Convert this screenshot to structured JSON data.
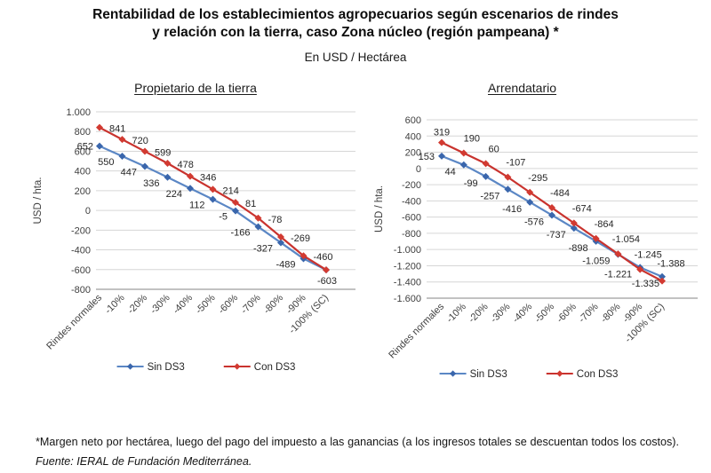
{
  "page": {
    "title_line1": "Rentabilidad de los establecimientos agropecuarios según escenarios de rindes",
    "title_line2": "y relación con la tierra, caso Zona núcleo (región pampeana) *",
    "subtitle": "En USD / Hectárea",
    "footnote_text": "*Margen neto por hectárea, luego del pago del impuesto a las ganancias (a los ingresos totales se descuentan todos los costos). ",
    "footnote_source": "Fuente: IERAL de Fundación Mediterránea."
  },
  "colors": {
    "sin_ds3_line": "#5B87C5",
    "sin_ds3_marker": "#3A66AC",
    "con_ds3_line": "#C9332E",
    "con_ds3_marker": "#D23A31",
    "gridline": "#D6D6D6",
    "axis_line": "#9E9E9E",
    "tick_text": "#404040",
    "label_text": "#262626"
  },
  "chart_data": [
    {
      "type": "line",
      "title": "Propietario de la tierra",
      "ylabel": "USD / hta.",
      "ylim": [
        -800,
        1000
      ],
      "ystep": 200,
      "grid": true,
      "legend_position": "bottom",
      "categories": [
        "Rindes normales",
        "-10%",
        "-20%",
        "-30%",
        "-40%",
        "-50%",
        "-60%",
        "-70%",
        "-80%",
        "-90%",
        "-100% (SC)"
      ],
      "series": [
        {
          "name": "Sin DS3",
          "color_key": "sin_ds3",
          "values": [
            652,
            550,
            447,
            336,
            224,
            112,
            -5,
            -166,
            -327,
            -489,
            -603
          ],
          "labels": [
            "652",
            "550",
            "447",
            "336",
            "224",
            "112",
            "-5",
            "-166",
            "-327",
            "-489",
            ""
          ]
        },
        {
          "name": "Con DS3",
          "color_key": "con_ds3",
          "values": [
            841,
            720,
            599,
            478,
            346,
            214,
            81,
            -78,
            -269,
            -460,
            -603
          ],
          "labels": [
            "841",
            "720",
            "599",
            "478",
            "346",
            "214",
            "81",
            "-78",
            "-269",
            "-460",
            "-603"
          ]
        }
      ]
    },
    {
      "type": "line",
      "title": "Arrendatario",
      "ylabel": "USD / hta.",
      "ylim": [
        -1600,
        600
      ],
      "ystep": 200,
      "grid": true,
      "legend_position": "bottom",
      "categories": [
        "Rindes normales",
        "-10%",
        "-20%",
        "-30%",
        "-40%",
        "-50%",
        "-60%",
        "-70%",
        "-80%",
        "-90%",
        "-100% (SC)"
      ],
      "series": [
        {
          "name": "Sin DS3",
          "color_key": "sin_ds3",
          "values": [
            153,
            44,
            -99,
            -257,
            -416,
            -576,
            -737,
            -898,
            -1059,
            -1221,
            -1335
          ],
          "labels": [
            "153",
            "44",
            "-99",
            "-257",
            "-416",
            "-576",
            "-737",
            "-898",
            "-1.059",
            "-1.221",
            "-1.335"
          ]
        },
        {
          "name": "Con DS3",
          "color_key": "con_ds3",
          "values": [
            319,
            190,
            60,
            -107,
            -295,
            -484,
            -674,
            -864,
            -1054,
            -1245,
            -1388
          ],
          "labels": [
            "319",
            "190",
            "60",
            "-107",
            "-295",
            "-484",
            "-674",
            "-864",
            "-1.054",
            "-1.245",
            "-1.388"
          ]
        }
      ]
    }
  ]
}
